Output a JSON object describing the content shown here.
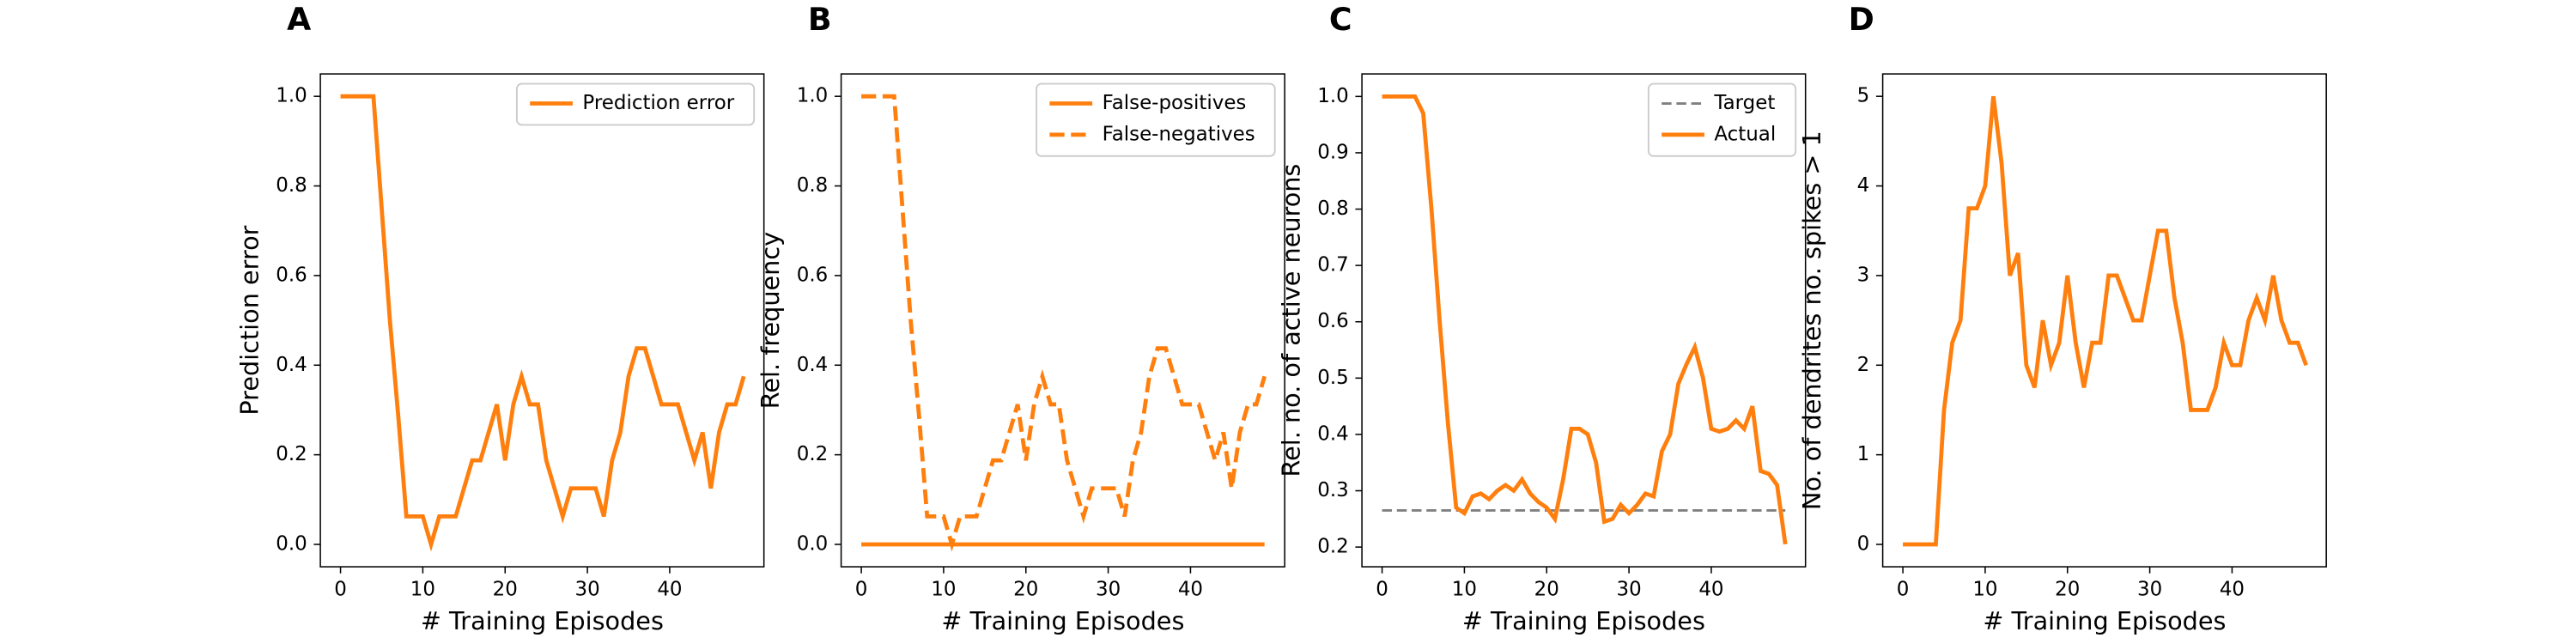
{
  "chart_data": [
    {
      "type": "line",
      "title": "A",
      "xlabel": "# Training Episodes",
      "ylabel": "Prediction error",
      "legend": "upper right",
      "x": [
        0,
        1,
        2,
        3,
        4,
        5,
        6,
        7,
        8,
        9,
        10,
        11,
        12,
        13,
        14,
        15,
        16,
        17,
        18,
        19,
        20,
        21,
        22,
        23,
        24,
        25,
        26,
        27,
        28,
        29,
        30,
        31,
        32,
        33,
        34,
        35,
        36,
        37,
        38,
        39,
        40,
        41,
        42,
        43,
        44,
        45,
        46,
        47,
        48,
        49
      ],
      "xlim": [
        -2.45,
        51.45
      ],
      "xticks": [
        0,
        10,
        20,
        30,
        40
      ],
      "ylim": [
        -0.05,
        1.05
      ],
      "yticks": [
        {
          "value": 0,
          "label": "0.0"
        },
        0.2,
        0.4,
        0.6,
        0.8,
        {
          "value": 1,
          "label": "1.0"
        }
      ],
      "series": [
        {
          "name": "Prediction error",
          "color": "#ff7f0e",
          "style": "solid",
          "values": [
            1,
            1,
            1,
            1,
            1,
            0.75,
            0.5,
            0.29,
            0.0625,
            0.0625,
            0.0625,
            0,
            0.0625,
            0.0625,
            0.0625,
            0.125,
            0.1875,
            0.1875,
            0.25,
            0.3125,
            0.1875,
            0.3125,
            0.375,
            0.3125,
            0.3125,
            0.1875,
            0.125,
            0.0625,
            0.125,
            0.125,
            0.125,
            0.125,
            0.0625,
            0.1875,
            0.25,
            0.375,
            0.4375,
            0.4375,
            0.375,
            0.3125,
            0.3125,
            0.3125,
            0.25,
            0.1875,
            0.25,
            0.125,
            0.25,
            0.3125,
            0.3125,
            0.375
          ]
        }
      ]
    },
    {
      "type": "line",
      "title": "B",
      "xlabel": "# Training Episodes",
      "ylabel": "Rel. frequency",
      "legend": "upper right",
      "x": [
        0,
        1,
        2,
        3,
        4,
        5,
        6,
        7,
        8,
        9,
        10,
        11,
        12,
        13,
        14,
        15,
        16,
        17,
        18,
        19,
        20,
        21,
        22,
        23,
        24,
        25,
        26,
        27,
        28,
        29,
        30,
        31,
        32,
        33,
        34,
        35,
        36,
        37,
        38,
        39,
        40,
        41,
        42,
        43,
        44,
        45,
        46,
        47,
        48,
        49
      ],
      "xlim": [
        -2.45,
        51.45
      ],
      "xticks": [
        0,
        10,
        20,
        30,
        40
      ],
      "ylim": [
        -0.05,
        1.05
      ],
      "yticks": [
        {
          "value": 0,
          "label": "0.0"
        },
        0.2,
        0.4,
        0.6,
        0.8,
        {
          "value": 1,
          "label": "1.0"
        }
      ],
      "series": [
        {
          "name": "False-positives",
          "color": "#ff7f0e",
          "style": "solid",
          "values": [
            0,
            0,
            0,
            0,
            0,
            0,
            0,
            0,
            0,
            0,
            0,
            0,
            0,
            0,
            0,
            0,
            0,
            0,
            0,
            0,
            0,
            0,
            0,
            0,
            0,
            0,
            0,
            0,
            0,
            0,
            0,
            0,
            0,
            0,
            0,
            0,
            0,
            0,
            0,
            0,
            0,
            0,
            0,
            0,
            0,
            0,
            0,
            0,
            0,
            0
          ]
        },
        {
          "name": "False-negatives",
          "color": "#ff7f0e",
          "style": "dashed",
          "values": [
            1,
            1,
            1,
            1,
            1,
            0.75,
            0.5,
            0.29,
            0.0625,
            0.0625,
            0.0625,
            0,
            0.0625,
            0.0625,
            0.0625,
            0.125,
            0.1875,
            0.1875,
            0.25,
            0.3125,
            0.1875,
            0.3125,
            0.375,
            0.3125,
            0.3125,
            0.1875,
            0.125,
            0.0625,
            0.125,
            0.125,
            0.125,
            0.125,
            0.0625,
            0.1875,
            0.25,
            0.375,
            0.4375,
            0.4375,
            0.375,
            0.3125,
            0.3125,
            0.3125,
            0.25,
            0.1875,
            0.25,
            0.125,
            0.25,
            0.3125,
            0.3125,
            0.375
          ]
        }
      ]
    },
    {
      "type": "line",
      "title": "C",
      "xlabel": "# Training Episodes",
      "ylabel": "Rel. no. of active neurons",
      "legend": "upper right",
      "x": [
        0,
        1,
        2,
        3,
        4,
        5,
        6,
        7,
        8,
        9,
        10,
        11,
        12,
        13,
        14,
        15,
        16,
        17,
        18,
        19,
        20,
        21,
        22,
        23,
        24,
        25,
        26,
        27,
        28,
        29,
        30,
        31,
        32,
        33,
        34,
        35,
        36,
        37,
        38,
        39,
        40,
        41,
        42,
        43,
        44,
        45,
        46,
        47,
        48,
        49
      ],
      "xlim": [
        -2.45,
        51.45
      ],
      "xticks": [
        0,
        10,
        20,
        30,
        40
      ],
      "ylim": [
        0.165,
        1.04
      ],
      "yticks": [
        0.2,
        0.3,
        0.4,
        0.5,
        0.6,
        0.7,
        0.8,
        0.9,
        {
          "value": 1,
          "label": "1.0"
        }
      ],
      "series": [
        {
          "name": "Target",
          "color": "#808080",
          "style": "dashed",
          "width": 1.5,
          "values": [
            0.265,
            0.265,
            0.265,
            0.265,
            0.265,
            0.265,
            0.265,
            0.265,
            0.265,
            0.265,
            0.265,
            0.265,
            0.265,
            0.265,
            0.265,
            0.265,
            0.265,
            0.265,
            0.265,
            0.265,
            0.265,
            0.265,
            0.265,
            0.265,
            0.265,
            0.265,
            0.265,
            0.265,
            0.265,
            0.265,
            0.265,
            0.265,
            0.265,
            0.265,
            0.265,
            0.265,
            0.265,
            0.265,
            0.265,
            0.265,
            0.265,
            0.265,
            0.265,
            0.265,
            0.265,
            0.265,
            0.265,
            0.265,
            0.265,
            0.265
          ]
        },
        {
          "name": "Actual",
          "color": "#ff7f0e",
          "style": "solid",
          "values": [
            1,
            1,
            1,
            1,
            1,
            0.97,
            0.8,
            0.6,
            0.42,
            0.27,
            0.26,
            0.29,
            0.295,
            0.285,
            0.3,
            0.31,
            0.3,
            0.32,
            0.295,
            0.28,
            0.27,
            0.25,
            0.32,
            0.41,
            0.41,
            0.4,
            0.35,
            0.245,
            0.25,
            0.275,
            0.26,
            0.275,
            0.295,
            0.29,
            0.37,
            0.4,
            0.49,
            0.525,
            0.555,
            0.5,
            0.41,
            0.405,
            0.41,
            0.425,
            0.41,
            0.45,
            0.335,
            0.33,
            0.31,
            0.205
          ]
        }
      ]
    },
    {
      "type": "line",
      "title": "D",
      "xlabel": "# Training Episodes",
      "ylabel": "No. of dendrites no. spikes > 1",
      "x": [
        0,
        1,
        2,
        3,
        4,
        5,
        6,
        7,
        8,
        9,
        10,
        11,
        12,
        13,
        14,
        15,
        16,
        17,
        18,
        19,
        20,
        21,
        22,
        23,
        24,
        25,
        26,
        27,
        28,
        29,
        30,
        31,
        32,
        33,
        34,
        35,
        36,
        37,
        38,
        39,
        40,
        41,
        42,
        43,
        44,
        45,
        46,
        47,
        48,
        49
      ],
      "xlim": [
        -2.45,
        51.45
      ],
      "xticks": [
        0,
        10,
        20,
        30,
        40
      ],
      "ylim": [
        -0.25,
        5.25
      ],
      "yticks": [
        0,
        1,
        2,
        3,
        4,
        5
      ],
      "series": [
        {
          "color": "#ff7f0e",
          "style": "solid",
          "values": [
            0,
            0,
            0,
            0,
            0,
            1.5,
            2.25,
            2.5,
            3.75,
            3.75,
            4,
            5,
            4.25,
            3,
            3.25,
            2,
            1.75,
            2.5,
            2,
            2.25,
            3,
            2.25,
            1.75,
            2.25,
            2.25,
            3,
            3,
            2.75,
            2.5,
            2.5,
            3,
            3.5,
            3.5,
            2.75,
            2.25,
            1.5,
            1.5,
            1.5,
            1.75,
            2.25,
            2,
            2,
            2.5,
            2.75,
            2.5,
            3,
            2.5,
            2.25,
            2.25,
            2
          ]
        }
      ]
    }
  ]
}
